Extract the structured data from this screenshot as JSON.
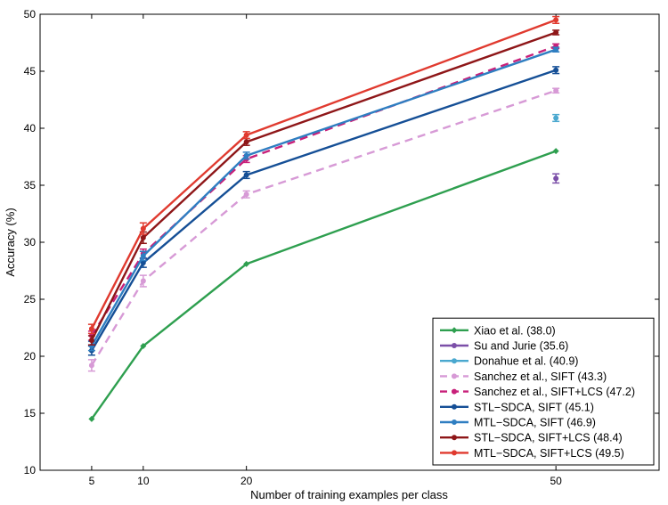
{
  "chart_data": {
    "type": "line",
    "xlabel": "Number of training examples per class",
    "ylabel": "Accuracy (%)",
    "xlim": [
      0,
      60
    ],
    "ylim": [
      10,
      50
    ],
    "x_ticks": [
      5,
      10,
      20,
      50
    ],
    "y_ticks": [
      10,
      15,
      20,
      25,
      30,
      35,
      40,
      45,
      50
    ],
    "grid": false,
    "legend_position": "bottom-right",
    "series": [
      {
        "name": "Xiao et al. (38.0)",
        "color": "#2e9f4f",
        "dashed": false,
        "marker": "diamond",
        "errorbars": false,
        "x": [
          5,
          10,
          20,
          50
        ],
        "y": [
          14.5,
          20.9,
          28.1,
          38.0
        ],
        "err": [
          0,
          0,
          0,
          0
        ]
      },
      {
        "name": "Su and Jurie (35.6)",
        "color": "#7b4fa8",
        "dashed": false,
        "marker": "dot",
        "errorbars": true,
        "x": [
          50
        ],
        "y": [
          35.6
        ],
        "err": [
          0.4
        ]
      },
      {
        "name": "Donahue et al. (40.9)",
        "color": "#4aa8cf",
        "dashed": false,
        "marker": "dot",
        "errorbars": true,
        "x": [
          50
        ],
        "y": [
          40.9
        ],
        "err": [
          0.3
        ]
      },
      {
        "name": "Sanchez et al., SIFT (43.3)",
        "color": "#d79ad6",
        "dashed": true,
        "marker": "dot",
        "errorbars": true,
        "x": [
          5,
          10,
          20,
          50
        ],
        "y": [
          19.2,
          26.6,
          34.2,
          43.3
        ],
        "err": [
          0.5,
          0.5,
          0.3,
          0.2
        ]
      },
      {
        "name": "Sanchez et al., SIFT+LCS (47.2)",
        "color": "#c8207a",
        "dashed": true,
        "marker": "dot",
        "errorbars": true,
        "x": [
          5,
          10,
          20,
          50
        ],
        "y": [
          21.8,
          29.0,
          37.3,
          47.2
        ],
        "err": [
          0.4,
          0.4,
          0.3,
          0.2
        ]
      },
      {
        "name": "STL−SDCA, SIFT (45.1)",
        "color": "#154f96",
        "dashed": false,
        "marker": "dot",
        "errorbars": true,
        "x": [
          5,
          10,
          20,
          50
        ],
        "y": [
          20.5,
          28.2,
          35.9,
          45.1
        ],
        "err": [
          0.4,
          0.4,
          0.3,
          0.3
        ]
      },
      {
        "name": "MTL−SDCA, SIFT (46.9)",
        "color": "#2f7ec1",
        "dashed": false,
        "marker": "dot",
        "errorbars": true,
        "x": [
          5,
          10,
          20,
          50
        ],
        "y": [
          20.9,
          28.8,
          37.6,
          46.9
        ],
        "err": [
          0.4,
          0.4,
          0.3,
          0.2
        ]
      },
      {
        "name": "STL−SDCA, SIFT+LCS (48.4)",
        "color": "#8e1618",
        "dashed": false,
        "marker": "dot",
        "errorbars": true,
        "x": [
          5,
          10,
          20,
          50
        ],
        "y": [
          21.4,
          30.4,
          38.8,
          48.4
        ],
        "err": [
          0.4,
          0.5,
          0.3,
          0.2
        ]
      },
      {
        "name": "MTL−SDCA, SIFT+LCS (49.5)",
        "color": "#e03a2f",
        "dashed": false,
        "marker": "dot",
        "errorbars": true,
        "x": [
          5,
          10,
          20,
          50
        ],
        "y": [
          22.4,
          31.2,
          39.4,
          49.5
        ],
        "err": [
          0.4,
          0.5,
          0.3,
          0.3
        ]
      }
    ]
  }
}
